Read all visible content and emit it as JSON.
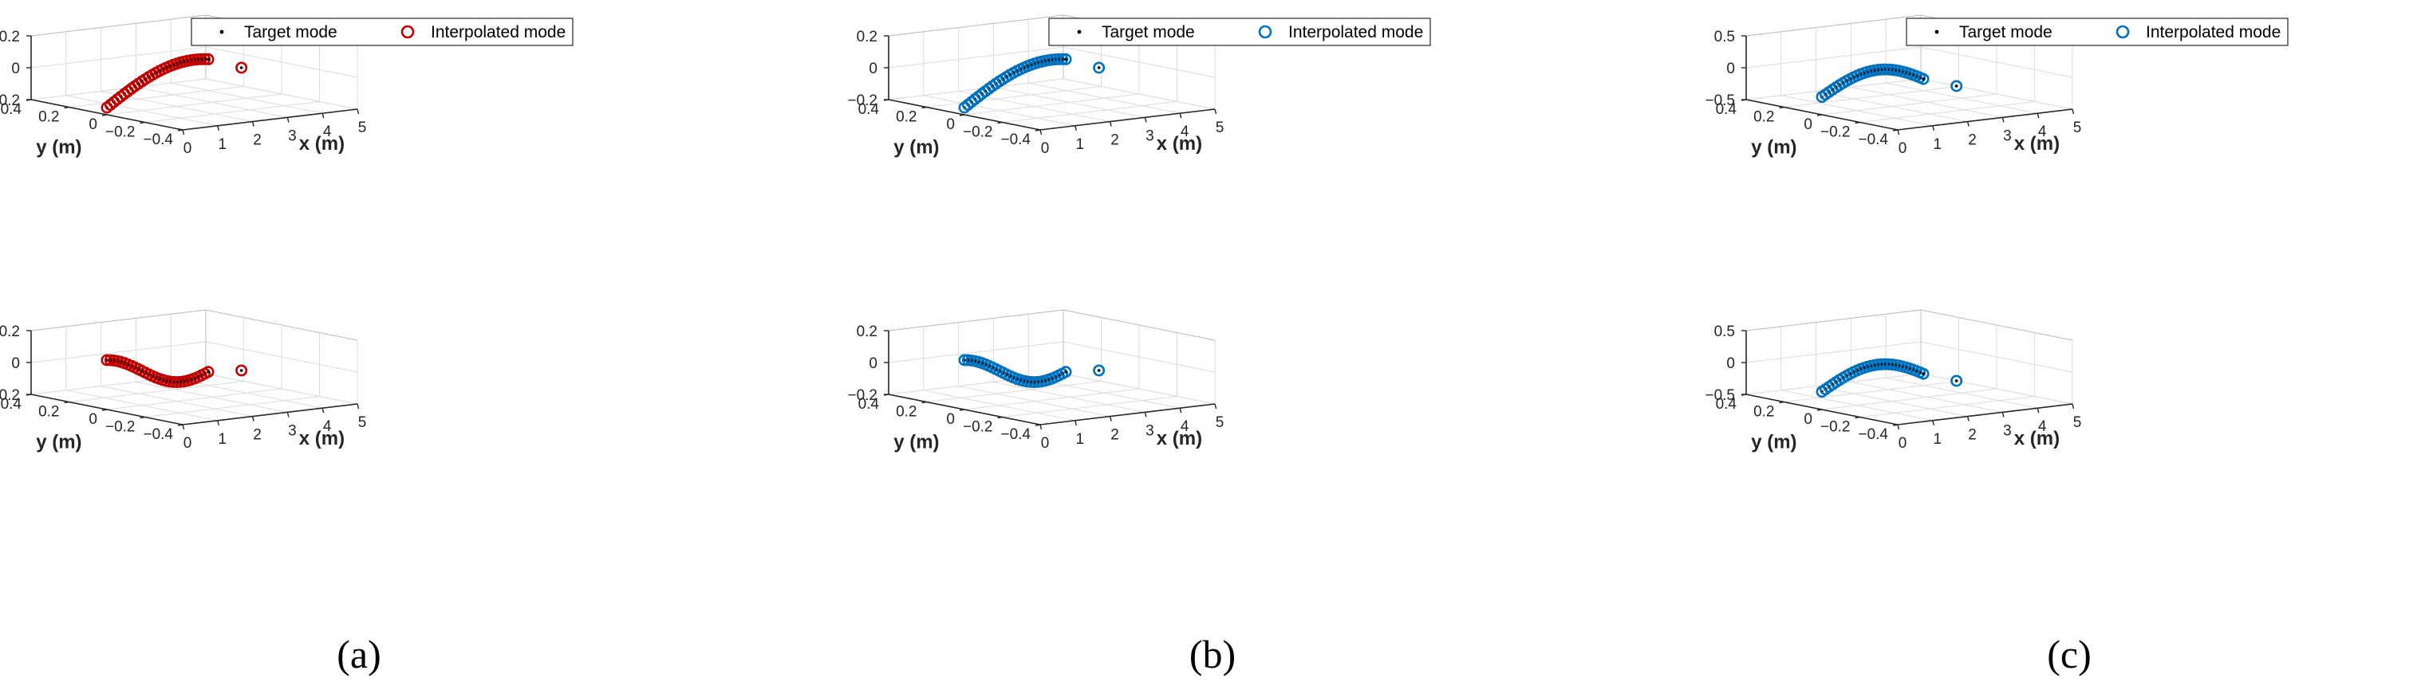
{
  "figure": {
    "captions": [
      "(a)",
      "(b)",
      "(c)"
    ]
  },
  "colors": {
    "red": "#c00000",
    "blue": "#0072bd",
    "target": "#000000",
    "grid": "#dcdcdc",
    "axis": "#262626"
  },
  "chart_data": [
    {
      "type": "scatter3d",
      "panel": "a-top",
      "color": "red",
      "mode": 1,
      "legend": [
        "Target mode",
        "Interpolated mode"
      ],
      "xlabel": "x (m)",
      "ylabel": "y (m)",
      "zlabel": "",
      "xlim": [
        0,
        5
      ],
      "ylim": [
        -0.4,
        0.4
      ],
      "zlim": [
        -0.2,
        0.2
      ],
      "xticks": [
        "0",
        "1",
        "2",
        "3",
        "4",
        "5"
      ],
      "yticks": [
        "-0.4",
        "-0.2",
        "0",
        "0.2",
        "0.4"
      ],
      "zticks": [
        "-0.2",
        "0",
        "0.2"
      ],
      "outlier_x": 3.85,
      "outlier_z": -0.005
    },
    {
      "type": "scatter3d",
      "panel": "a-bottom",
      "color": "red",
      "mode": 2,
      "legend": [],
      "xlabel": "x (m)",
      "ylabel": "y (m)",
      "zlabel": "",
      "xlim": [
        0,
        5
      ],
      "ylim": [
        -0.4,
        0.4
      ],
      "zlim": [
        -0.2,
        0.2
      ],
      "xticks": [
        "0",
        "1",
        "2",
        "3",
        "4",
        "5"
      ],
      "yticks": [
        "-0.4",
        "-0.2",
        "0",
        "0.2",
        "0.4"
      ],
      "zticks": [
        "-0.2",
        "0",
        "0.2"
      ],
      "outlier_x": 3.85,
      "outlier_z": -0.055
    },
    {
      "type": "scatter3d",
      "panel": "b-top",
      "color": "blue",
      "mode": 1,
      "legend": [
        "Target mode",
        "Interpolated mode"
      ],
      "xlabel": "x (m)",
      "ylabel": "y (m)",
      "zlabel": "",
      "xlim": [
        0,
        5
      ],
      "ylim": [
        -0.4,
        0.4
      ],
      "zlim": [
        -0.2,
        0.2
      ],
      "xticks": [
        "0",
        "1",
        "2",
        "3",
        "4",
        "5"
      ],
      "yticks": [
        "-0.4",
        "-0.2",
        "0",
        "0.2",
        "0.4"
      ],
      "zticks": [
        "-0.2",
        "0",
        "0.2"
      ],
      "outlier_x": 3.85,
      "outlier_z": -0.005
    },
    {
      "type": "scatter3d",
      "panel": "b-bottom",
      "color": "blue",
      "mode": 2,
      "legend": [],
      "xlabel": "x (m)",
      "ylabel": "y (m)",
      "zlabel": "",
      "xlim": [
        0,
        5
      ],
      "ylim": [
        -0.4,
        0.4
      ],
      "zlim": [
        -0.2,
        0.2
      ],
      "xticks": [
        "0",
        "1",
        "2",
        "3",
        "4",
        "5"
      ],
      "yticks": [
        "-0.4",
        "-0.2",
        "0",
        "0.2",
        "0.4"
      ],
      "zticks": [
        "-0.2",
        "0",
        "0.2"
      ],
      "outlier_x": 3.85,
      "outlier_z": -0.055
    },
    {
      "type": "scatter3d",
      "panel": "c-top",
      "color": "blue",
      "mode": 3,
      "legend": [
        "Target mode",
        "Interpolated mode"
      ],
      "xlabel": "x (m)",
      "ylabel": "y (m)",
      "zlabel": "",
      "xlim": [
        0,
        5
      ],
      "ylim": [
        -0.4,
        0.4
      ],
      "zlim": [
        -0.5,
        0.5
      ],
      "xticks": [
        "0",
        "1",
        "2",
        "3",
        "4",
        "5"
      ],
      "yticks": [
        "-0.4",
        "-0.2",
        "0",
        "0.2",
        "0.4"
      ],
      "zticks": [
        "-0.5",
        "0",
        "0.5"
      ],
      "outlier_x": 3.85,
      "outlier_z": -0.3
    },
    {
      "type": "scatter3d",
      "panel": "c-bottom",
      "color": "blue",
      "mode": 3,
      "legend": [],
      "xlabel": "x (m)",
      "ylabel": "y (m)",
      "zlabel": "",
      "xlim": [
        0,
        5
      ],
      "ylim": [
        -0.4,
        0.4
      ],
      "zlim": [
        -0.5,
        0.5
      ],
      "xticks": [
        "0",
        "1",
        "2",
        "3",
        "4",
        "5"
      ],
      "yticks": [
        "-0.4",
        "-0.2",
        "0",
        "0.2",
        "0.4"
      ],
      "zticks": [
        "-0.5",
        "0",
        "0.5"
      ],
      "outlier_x": 3.85,
      "outlier_z": -0.3
    }
  ]
}
